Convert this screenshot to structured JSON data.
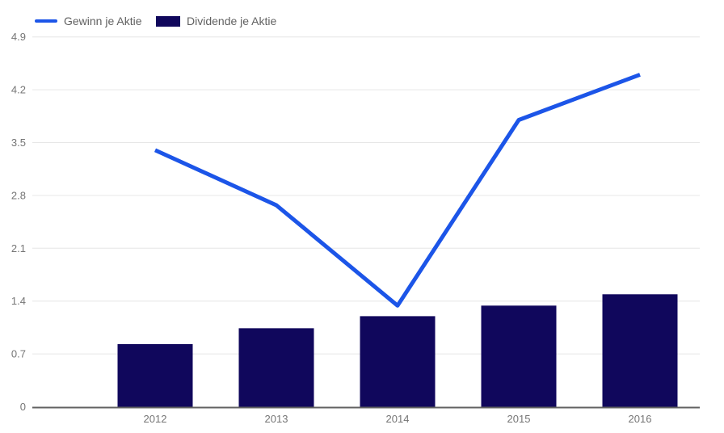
{
  "legend": {
    "items": [
      {
        "label": "Gewinn je Aktie",
        "type": "line",
        "color": "#1c55e8"
      },
      {
        "label": "Dividende je Aktie",
        "type": "bar",
        "color": "#10075c"
      }
    ]
  },
  "chart_data": {
    "type": "combo",
    "title": "",
    "xlabel": "",
    "ylabel": "",
    "categories": [
      "2012",
      "2013",
      "2014",
      "2015",
      "2016"
    ],
    "series": [
      {
        "name": "Gewinn je Aktie",
        "type": "line",
        "color": "#1c55e8",
        "values": [
          3.4,
          2.67,
          1.34,
          3.8,
          4.4
        ]
      },
      {
        "name": "Dividende je Aktie",
        "type": "bar",
        "color": "#10075c",
        "values": [
          0.83,
          1.04,
          1.2,
          1.34,
          1.49
        ]
      }
    ],
    "ylim": [
      0,
      4.9
    ],
    "yticks": [
      0,
      0.7,
      1.4,
      2.1,
      2.8,
      3.5,
      4.2,
      4.9
    ],
    "ytick_labels": [
      "0",
      "0.7",
      "1.4",
      "2.1",
      "2.8",
      "3.5",
      "4.2",
      "4.9"
    ],
    "grid": true,
    "legend_position": "top-left",
    "colors": {
      "grid": "#e6e6e6",
      "axis_line": "#616161",
      "tick_label": "#757575",
      "background": "#ffffff"
    }
  }
}
